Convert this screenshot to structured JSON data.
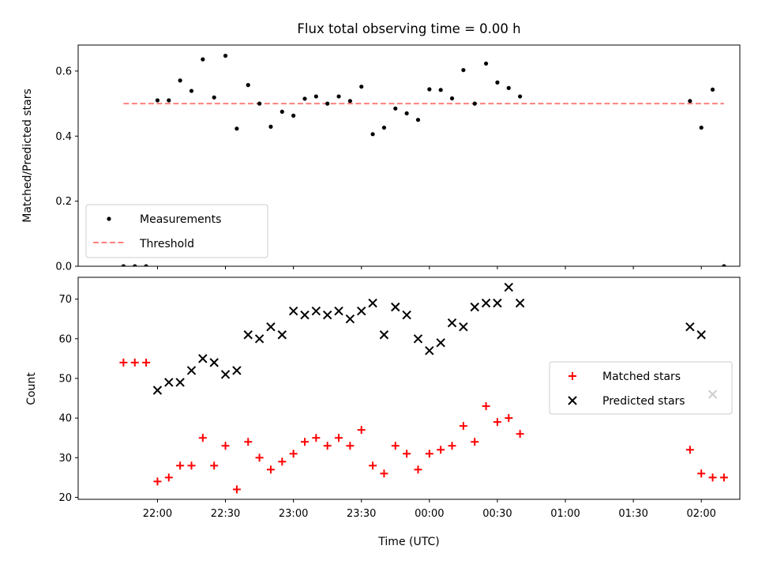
{
  "chart_data": [
    {
      "type": "scatter",
      "title": "Flux total observing time = 0.00 h",
      "xlabel": "",
      "ylabel": "Matched/Predicted stars",
      "ylim": [
        0.0,
        0.68
      ],
      "yticks": [
        "0.0",
        "0.2",
        "0.4",
        "0.6"
      ],
      "legend_position": "lower-left",
      "threshold": 0.5,
      "series": [
        {
          "name": "Measurements",
          "marker": "dot",
          "color": "#000000",
          "x": [
            "21:45",
            "21:50",
            "21:55",
            "22:00",
            "22:05",
            "22:10",
            "22:15",
            "22:20",
            "22:25",
            "22:30",
            "22:35",
            "22:40",
            "22:45",
            "22:50",
            "22:55",
            "23:00",
            "23:05",
            "23:10",
            "23:15",
            "23:20",
            "23:25",
            "23:30",
            "23:35",
            "23:40",
            "23:45",
            "23:50",
            "23:55",
            "00:00",
            "00:05",
            "00:10",
            "00:15",
            "00:20",
            "00:25",
            "00:30",
            "00:35",
            "00:40",
            "01:55",
            "02:00",
            "02:05",
            "02:10"
          ],
          "y": [
            0.0,
            0.0,
            0.0,
            0.51,
            0.51,
            0.571,
            0.539,
            0.636,
            0.519,
            0.647,
            0.423,
            0.557,
            0.5,
            0.429,
            0.475,
            0.463,
            0.515,
            0.522,
            0.5,
            0.522,
            0.508,
            0.552,
            0.406,
            0.426,
            0.485,
            0.47,
            0.45,
            0.544,
            0.542,
            0.516,
            0.603,
            0.5,
            0.623,
            0.565,
            0.548,
            0.522,
            0.508,
            0.426,
            0.543,
            0.0
          ]
        },
        {
          "name": "Threshold",
          "marker": "dashed-line",
          "color": "#ff7f7f",
          "x": [
            "21:45",
            "02:10"
          ],
          "y": [
            0.5,
            0.5
          ]
        }
      ]
    },
    {
      "type": "scatter",
      "title": "",
      "xlabel": "Time (UTC)",
      "ylabel": "Count",
      "ylim": [
        19.5,
        75.5
      ],
      "yticks": [
        "20",
        "30",
        "40",
        "50",
        "60",
        "70"
      ],
      "xticks": [
        "22:00",
        "22:30",
        "23:00",
        "23:30",
        "00:00",
        "00:30",
        "01:00",
        "01:30",
        "02:00"
      ],
      "legend_position": "center-right",
      "series": [
        {
          "name": "Matched stars",
          "marker": "plus",
          "color": "#ff0000",
          "x": [
            "21:45",
            "21:50",
            "21:55",
            "22:00",
            "22:05",
            "22:10",
            "22:15",
            "22:20",
            "22:25",
            "22:30",
            "22:35",
            "22:40",
            "22:45",
            "22:50",
            "22:55",
            "23:00",
            "23:05",
            "23:10",
            "23:15",
            "23:20",
            "23:25",
            "23:30",
            "23:35",
            "23:40",
            "23:45",
            "23:50",
            "23:55",
            "00:00",
            "00:05",
            "00:10",
            "00:15",
            "00:20",
            "00:25",
            "00:30",
            "00:35",
            "00:40",
            "01:55",
            "02:00",
            "02:05",
            "02:10"
          ],
          "y": [
            54,
            54,
            54,
            24,
            25,
            28,
            28,
            35,
            28,
            33,
            22,
            34,
            30,
            27,
            29,
            31,
            34,
            35,
            33,
            35,
            33,
            37,
            28,
            26,
            33,
            31,
            27,
            31,
            32,
            33,
            38,
            34,
            43,
            39,
            40,
            36,
            32,
            26,
            25,
            25
          ]
        },
        {
          "name": "Predicted stars",
          "marker": "x",
          "color": "#000000",
          "x": [
            "22:00",
            "22:05",
            "22:10",
            "22:15",
            "22:20",
            "22:25",
            "22:30",
            "22:35",
            "22:40",
            "22:45",
            "22:50",
            "22:55",
            "23:00",
            "23:05",
            "23:10",
            "23:15",
            "23:20",
            "23:25",
            "23:30",
            "23:35",
            "23:40",
            "23:45",
            "23:50",
            "23:55",
            "00:00",
            "00:05",
            "00:10",
            "00:15",
            "00:20",
            "00:25",
            "00:30",
            "00:35",
            "00:40",
            "01:55",
            "02:00",
            "02:05"
          ],
          "y": [
            47,
            49,
            49,
            52,
            55,
            54,
            51,
            52,
            61,
            60,
            63,
            61,
            67,
            66,
            67,
            66,
            67,
            65,
            67,
            69,
            61,
            68,
            66,
            60,
            57,
            59,
            64,
            63,
            68,
            69,
            69,
            73,
            69,
            63,
            61,
            46
          ]
        }
      ]
    }
  ]
}
